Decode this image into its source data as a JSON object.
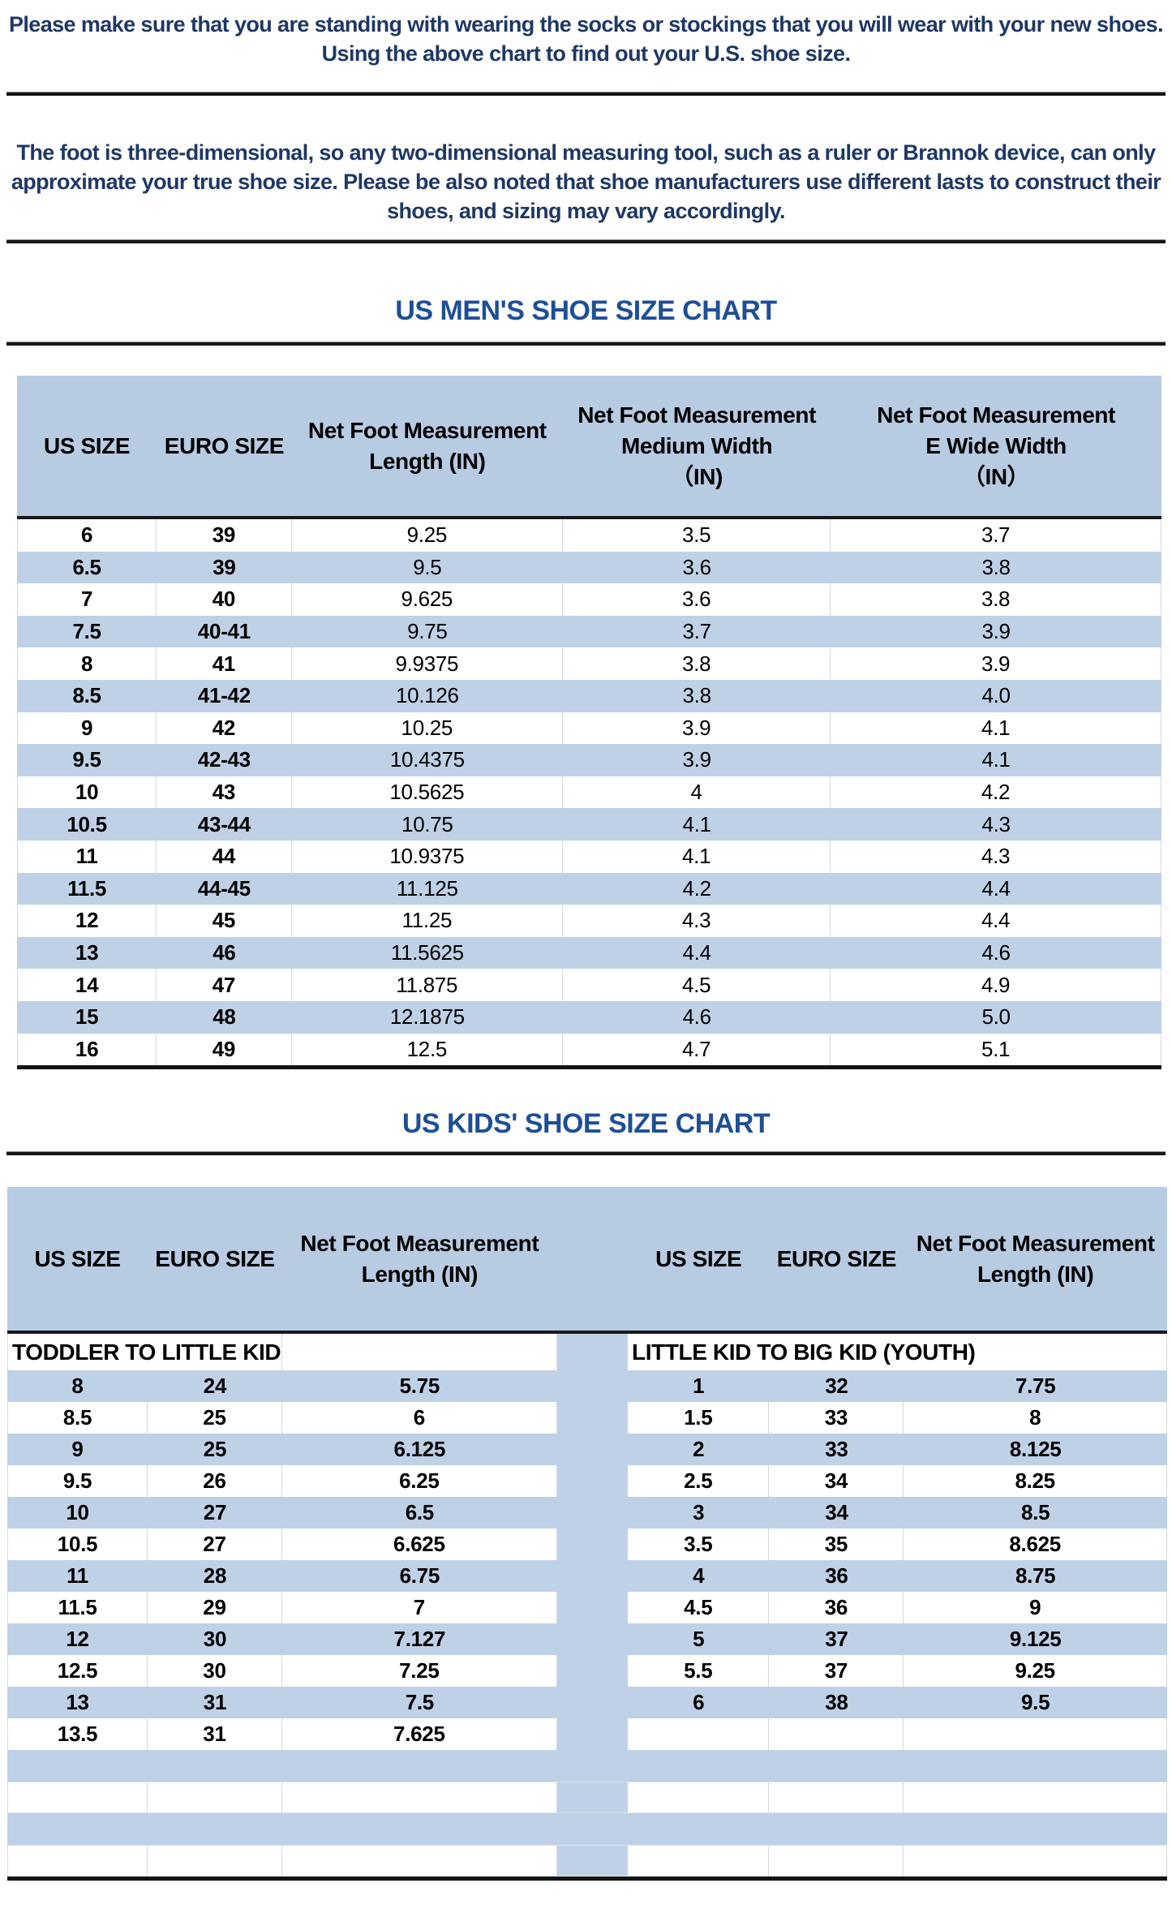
{
  "colors": {
    "heading_navy": "#1f3864",
    "title_blue": "#1e4f96",
    "row_blue": "#bfd1e7",
    "header_blue": "#b7cbe3",
    "cell_border": "#d3d9e2",
    "divider_black": "#161616"
  },
  "intro": {
    "para1_lines": [
      "Please make sure that you are standing with wearing the socks or stockings that you will wear with your new shoes.",
      "Using the above chart to find out your U.S. shoe size."
    ],
    "para2_lines": [
      "The foot is three-dimensional, so any two-dimensional measuring tool, such as a ruler or Brannok device, can only",
      "approximate your true shoe size. Please be also noted that shoe manufacturers use different lasts to construct their",
      "shoes, and sizing may vary accordingly."
    ]
  },
  "mens_chart": {
    "title": "US MEN'S SHOE SIZE CHART",
    "headers": [
      "US SIZE",
      "EURO SIZE",
      "Net Foot Measurement\nLength (IN)",
      "Net Foot Measurement\nMedium Width\n（IN)",
      "Net Foot Measurement\nE Wide Width\n（IN）"
    ],
    "rows": [
      [
        "6",
        "39",
        "9.25",
        "3.5",
        "3.7"
      ],
      [
        "6.5",
        "39",
        "9.5",
        "3.6",
        "3.8"
      ],
      [
        "7",
        "40",
        "9.625",
        "3.6",
        "3.8"
      ],
      [
        "7.5",
        "40-41",
        "9.75",
        "3.7",
        "3.9"
      ],
      [
        "8",
        "41",
        "9.9375",
        "3.8",
        "3.9"
      ],
      [
        "8.5",
        "41-42",
        "10.126",
        "3.8",
        "4.0"
      ],
      [
        "9",
        "42",
        "10.25",
        "3.9",
        "4.1"
      ],
      [
        "9.5",
        "42-43",
        "10.4375",
        "3.9",
        "4.1"
      ],
      [
        "10",
        "43",
        "10.5625",
        "4",
        "4.2"
      ],
      [
        "10.5",
        "43-44",
        "10.75",
        "4.1",
        "4.3"
      ],
      [
        "11",
        "44",
        "10.9375",
        "4.1",
        "4.3"
      ],
      [
        "11.5",
        "44-45",
        "11.125",
        "4.2",
        "4.4"
      ],
      [
        "12",
        "45",
        "11.25",
        "4.3",
        "4.4"
      ],
      [
        "13",
        "46",
        "11.5625",
        "4.4",
        "4.6"
      ],
      [
        "14",
        "47",
        "11.875",
        "4.5",
        "4.9"
      ],
      [
        "15",
        "48",
        "12.1875",
        "4.6",
        "5.0"
      ],
      [
        "16",
        "49",
        "12.5",
        "4.7",
        "5.1"
      ]
    ]
  },
  "kids_chart": {
    "title": "US KIDS' SHOE SIZE CHART",
    "headers": [
      "US SIZE",
      "EURO SIZE",
      "Net Foot Measurement\nLength (IN)",
      "US SIZE",
      "EURO SIZE",
      "Net Foot Measurement\nLength (IN)"
    ],
    "left_section_label": "TODDLER TO LITTLE KID",
    "right_section_label": "LITTLE KID TO BIG KID (YOUTH)",
    "left_rows": [
      [
        "8",
        "24",
        "5.75"
      ],
      [
        "8.5",
        "25",
        "6"
      ],
      [
        "9",
        "25",
        "6.125"
      ],
      [
        "9.5",
        "26",
        "6.25"
      ],
      [
        "10",
        "27",
        "6.5"
      ],
      [
        "10.5",
        "27",
        "6.625"
      ],
      [
        "11",
        "28",
        "6.75"
      ],
      [
        "11.5",
        "29",
        "7"
      ],
      [
        "12",
        "30",
        "7.127"
      ],
      [
        "12.5",
        "30",
        "7.25"
      ],
      [
        "13",
        "31",
        "7.5"
      ],
      [
        "13.5",
        "31",
        "7.625"
      ]
    ],
    "right_rows": [
      [
        "1",
        "32",
        "7.75"
      ],
      [
        "1.5",
        "33",
        "8"
      ],
      [
        "2",
        "33",
        "8.125"
      ],
      [
        "2.5",
        "34",
        "8.25"
      ],
      [
        "3",
        "34",
        "8.5"
      ],
      [
        "3.5",
        "35",
        "8.625"
      ],
      [
        "4",
        "36",
        "8.75"
      ],
      [
        "4.5",
        "36",
        "9"
      ],
      [
        "5",
        "37",
        "9.125"
      ],
      [
        "5.5",
        "37",
        "9.25"
      ],
      [
        "6",
        "38",
        "9.5"
      ],
      [
        "",
        "",
        ""
      ]
    ],
    "trailing_empty_rows": 4
  }
}
